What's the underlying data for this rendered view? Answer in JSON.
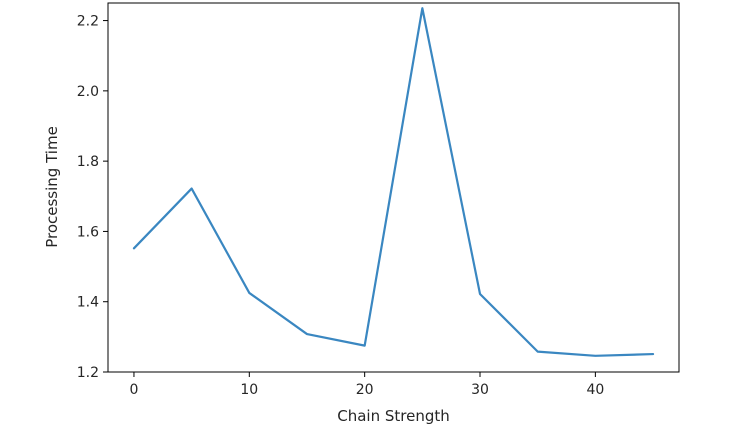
{
  "chart_data": {
    "type": "line",
    "title": "",
    "xlabel": "Chain Strength",
    "ylabel": "Processing Time",
    "xlim": [
      -2.25,
      47.25
    ],
    "ylim": [
      1.2,
      2.25
    ],
    "xticks": [
      0,
      10,
      20,
      30,
      40
    ],
    "yticks": [
      1.2,
      1.4,
      1.6,
      1.8,
      2.0,
      2.2
    ],
    "xtick_labels": [
      "0",
      "10",
      "20",
      "30",
      "40"
    ],
    "ytick_labels": [
      "1.2",
      "1.4",
      "1.6",
      "1.8",
      "2.0",
      "2.2"
    ],
    "grid": false,
    "series": [
      {
        "color": "#3a87c1",
        "x": [
          0,
          5,
          10,
          15,
          20,
          25,
          30,
          35,
          40,
          45
        ],
        "y": [
          1.552,
          1.722,
          1.425,
          1.308,
          1.275,
          2.235,
          1.422,
          1.258,
          1.246,
          1.251
        ]
      }
    ]
  }
}
